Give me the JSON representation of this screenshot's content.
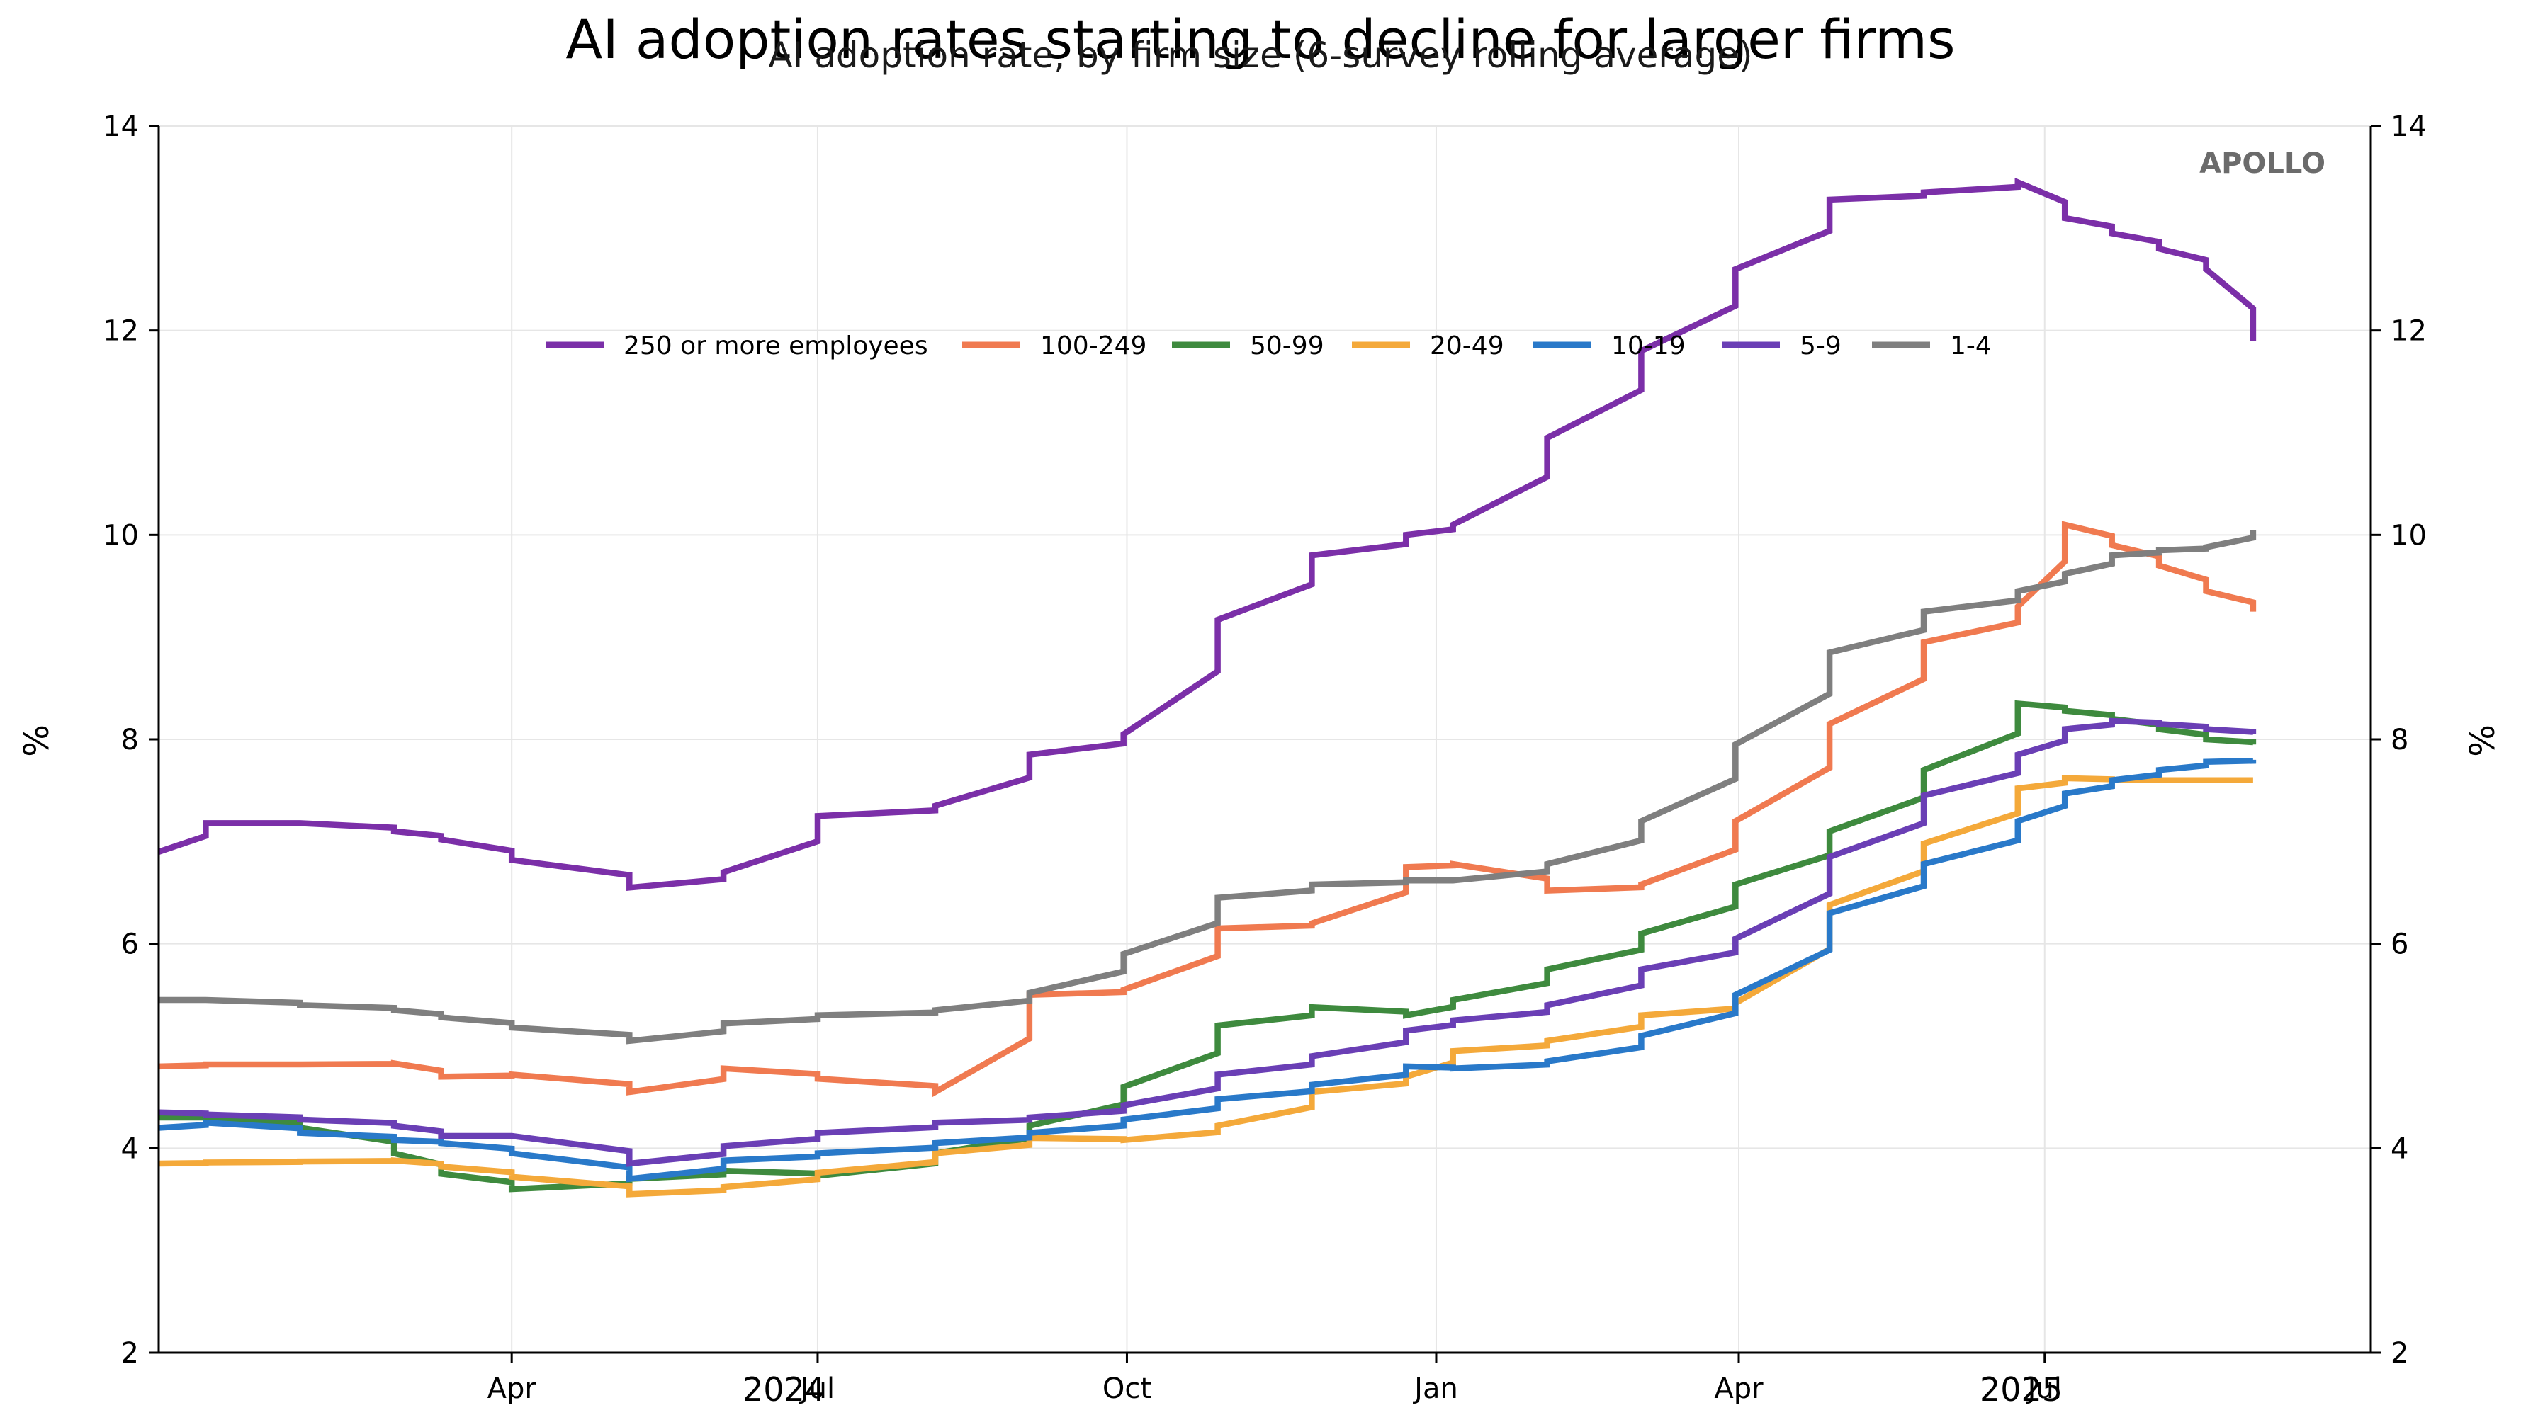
{
  "chart_data": {
    "type": "line",
    "title": "AI adoption rates starting to decline for larger firms",
    "subtitle": "AI adoption rate, by firm size (6-survey rolling average)",
    "ylabel": "%",
    "ylabel_right": "%",
    "ylim": [
      2,
      14
    ],
    "xlim": [
      "2023-12-18",
      "2025-10-06"
    ],
    "yticks": [
      2,
      4,
      6,
      8,
      10,
      12,
      14
    ],
    "xticks": [
      {
        "date": "2024-04-01",
        "label": "Apr"
      },
      {
        "date": "2024-07-01",
        "label": "Jul"
      },
      {
        "date": "2024-10-01",
        "label": "Oct"
      },
      {
        "date": "2025-01-01",
        "label": "Jan"
      },
      {
        "date": "2025-04-01",
        "label": "Apr"
      },
      {
        "date": "2025-07-01",
        "label": "Jul"
      }
    ],
    "year_labels": [
      {
        "label": "2024",
        "date": "2024-06-21"
      },
      {
        "label": "2025",
        "date": "2025-06-24"
      }
    ],
    "grid": true,
    "legend": "upper-center",
    "watermark": "APOLLO",
    "x": [
      "2023-12-18",
      "2024-01-01",
      "2024-01-29",
      "2024-02-26",
      "2024-03-11",
      "2024-04-01",
      "2024-05-06",
      "2024-06-03",
      "2024-07-01",
      "2024-08-05",
      "2024-09-02",
      "2024-09-30",
      "2024-10-28",
      "2024-11-25",
      "2024-12-23",
      "2025-01-06",
      "2025-02-03",
      "2025-03-03",
      "2025-03-31",
      "2025-04-28",
      "2025-05-26",
      "2025-06-23",
      "2025-07-07",
      "2025-07-21",
      "2025-08-04",
      "2025-08-18",
      "2025-09-01"
    ],
    "series": [
      {
        "name": "250 or more employees",
        "color": "#7b2fa8",
        "values": [
          6.9,
          7.18,
          7.18,
          7.1,
          7.02,
          6.82,
          6.55,
          6.7,
          7.25,
          7.35,
          7.85,
          8.05,
          9.17,
          9.8,
          10.0,
          10.1,
          10.95,
          11.8,
          12.6,
          13.28,
          13.35,
          13.45,
          13.1,
          12.95,
          12.8,
          12.6,
          11.9
        ]
      },
      {
        "name": "100-249",
        "color": "#f07a50",
        "values": [
          4.8,
          4.82,
          4.82,
          4.83,
          4.7,
          4.72,
          4.55,
          4.78,
          4.68,
          4.55,
          5.5,
          5.55,
          6.15,
          6.2,
          6.75,
          6.78,
          6.52,
          6.58,
          7.2,
          8.15,
          8.95,
          9.3,
          10.1,
          9.9,
          9.7,
          9.45,
          9.25
        ]
      },
      {
        "name": "50-99",
        "color": "#3e8a3e",
        "values": [
          4.3,
          4.3,
          4.2,
          3.95,
          3.75,
          3.6,
          3.7,
          3.78,
          3.73,
          3.95,
          4.22,
          4.6,
          5.2,
          5.38,
          5.3,
          5.45,
          5.75,
          6.1,
          6.58,
          7.1,
          7.7,
          8.35,
          8.28,
          8.2,
          8.1,
          8.0,
          7.95
        ]
      },
      {
        "name": "20-49",
        "color": "#f4a93a",
        "values": [
          3.85,
          3.86,
          3.87,
          3.88,
          3.82,
          3.72,
          3.55,
          3.62,
          3.76,
          3.95,
          4.1,
          4.08,
          4.22,
          4.55,
          4.7,
          4.95,
          5.05,
          5.3,
          5.42,
          6.38,
          6.98,
          7.52,
          7.62,
          7.6,
          7.6,
          7.6,
          7.6
        ]
      },
      {
        "name": "10-19",
        "color": "#2979c9",
        "values": [
          4.2,
          4.25,
          4.15,
          4.08,
          4.05,
          3.95,
          3.7,
          3.88,
          3.95,
          4.05,
          4.15,
          4.28,
          4.48,
          4.62,
          4.8,
          4.78,
          4.85,
          5.1,
          5.5,
          6.3,
          6.78,
          7.2,
          7.47,
          7.6,
          7.7,
          7.78,
          7.8
        ]
      },
      {
        "name": "5-9",
        "color": "#6a3fb5",
        "values": [
          4.35,
          4.33,
          4.28,
          4.22,
          4.12,
          4.12,
          3.85,
          4.02,
          4.15,
          4.25,
          4.3,
          4.42,
          4.72,
          4.9,
          5.15,
          5.25,
          5.4,
          5.75,
          6.05,
          6.85,
          7.45,
          7.85,
          8.1,
          8.18,
          8.15,
          8.1,
          8.05
        ]
      },
      {
        "name": "1-4",
        "color": "#7f7f7f",
        "values": [
          5.45,
          5.45,
          5.4,
          5.35,
          5.28,
          5.18,
          5.05,
          5.22,
          5.3,
          5.35,
          5.52,
          5.9,
          6.45,
          6.58,
          6.62,
          6.62,
          6.78,
          7.2,
          7.95,
          8.85,
          9.25,
          9.45,
          9.62,
          9.8,
          9.85,
          9.88,
          10.05
        ]
      }
    ]
  }
}
